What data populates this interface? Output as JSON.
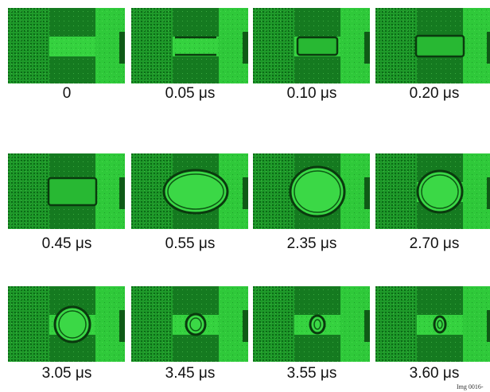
{
  "panels": [
    {
      "label": "0"
    },
    {
      "label": "0.05 μs"
    },
    {
      "label": "0.10 μs"
    },
    {
      "label": "0.20 μs"
    },
    {
      "label": "0.45 μs"
    },
    {
      "label": "0.55 μs"
    },
    {
      "label": "2.35 μs"
    },
    {
      "label": "2.70 μs"
    },
    {
      "label": "3.05 μs"
    },
    {
      "label": "3.45 μs"
    },
    {
      "label": "3.55 μs"
    },
    {
      "label": "3.60 μs"
    }
  ],
  "footer": "Img 0016-"
}
